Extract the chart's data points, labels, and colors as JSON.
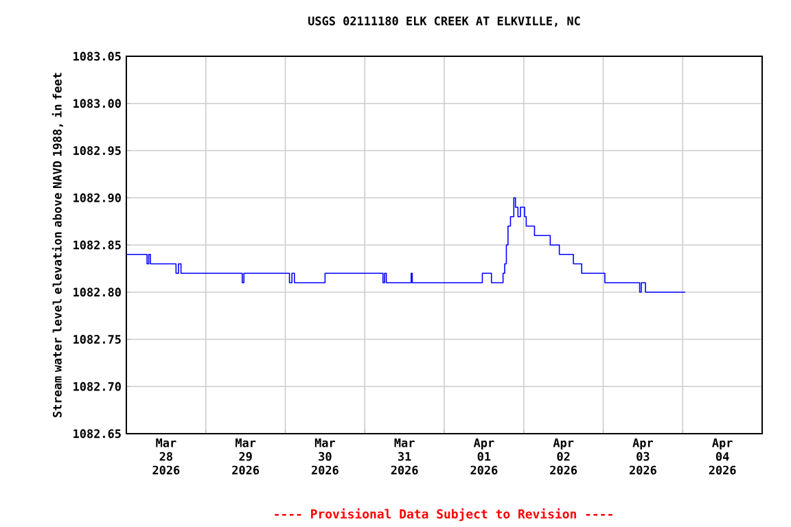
{
  "chart_data": {
    "type": "step",
    "title": "USGS 02111180 ELK CREEK AT ELKVILLE, NC",
    "ylabel": "Stream water level elevation above NAVD 1988, in feet",
    "annotations": [
      "---- Provisional Data Subject to Revision ----"
    ],
    "x": [
      "2026-03-28T00:00",
      "2026-03-28T06:15",
      "2026-03-28T06:45",
      "2026-03-28T07:15",
      "2026-03-28T15:00",
      "2026-03-28T15:45",
      "2026-03-28T16:30",
      "2026-03-29T11:00",
      "2026-03-29T11:30",
      "2026-03-30T01:15",
      "2026-03-30T02:00",
      "2026-03-30T02:45",
      "2026-03-30T12:00",
      "2026-03-31T05:30",
      "2026-03-31T06:00",
      "2026-03-31T06:30",
      "2026-03-31T14:00",
      "2026-03-31T14:20",
      "2026-04-01T11:30",
      "2026-04-01T14:15",
      "2026-04-01T17:45",
      "2026-04-01T18:15",
      "2026-04-01T18:45",
      "2026-04-01T19:15",
      "2026-04-01T20:00",
      "2026-04-01T21:00",
      "2026-04-01T21:30",
      "2026-04-01T22:15",
      "2026-04-01T23:00",
      "2026-04-02T00:15",
      "2026-04-02T00:45",
      "2026-04-02T03:15",
      "2026-04-02T08:00",
      "2026-04-02T10:45",
      "2026-04-02T15:00",
      "2026-04-02T17:30",
      "2026-04-03T00:30",
      "2026-04-03T11:00",
      "2026-04-03T11:30",
      "2026-04-03T12:45",
      "2026-04-04T00:45"
    ],
    "series": [
      {
        "color": "#0000ff",
        "values": [
          1082.84,
          1082.83,
          1082.84,
          1082.83,
          1082.82,
          1082.83,
          1082.82,
          1082.81,
          1082.82,
          1082.81,
          1082.82,
          1082.81,
          1082.82,
          1082.81,
          1082.82,
          1082.81,
          1082.82,
          1082.81,
          1082.82,
          1082.81,
          1082.82,
          1082.83,
          1082.85,
          1082.87,
          1082.88,
          1082.9,
          1082.89,
          1082.88,
          1082.89,
          1082.88,
          1082.87,
          1082.86,
          1082.85,
          1082.84,
          1082.83,
          1082.82,
          1082.81,
          1082.8,
          1082.81,
          1082.8,
          1082.8
        ]
      }
    ],
    "xlim": [
      "2026-03-28T00:00",
      "2026-04-05T00:00"
    ],
    "xticks": [
      {
        "value": "2026-03-29T00:00",
        "label": null
      },
      {
        "value": "2026-03-30T00:00",
        "label": null
      },
      {
        "value": "2026-03-31T00:00",
        "label": null
      },
      {
        "value": "2026-04-01T00:00",
        "label": null
      },
      {
        "value": "2026-04-02T00:00",
        "label": null
      },
      {
        "value": "2026-04-03T00:00",
        "label": null
      },
      {
        "value": "2026-04-04T00:00",
        "label": null
      },
      {
        "value": "2026-03-28T12:00",
        "label": "Mar 28 2026"
      },
      {
        "value": "2026-03-29T12:00",
        "label": "Mar 29 2026"
      },
      {
        "value": "2026-03-30T12:00",
        "label": "Mar 30 2026"
      },
      {
        "value": "2026-03-31T12:00",
        "label": "Mar 31 2026"
      },
      {
        "value": "2026-04-01T12:00",
        "label": "Apr 01 2026"
      },
      {
        "value": "2026-04-02T12:00",
        "label": "Apr 02 2026"
      },
      {
        "value": "2026-04-03T12:00",
        "label": "Apr 03 2026"
      },
      {
        "value": "2026-04-04T12:00",
        "label": "Apr 04 2026"
      }
    ],
    "ylim": [
      1082.65,
      1083.05
    ],
    "yticks": [
      {
        "value": 1082.65,
        "label": "1082.65"
      },
      {
        "value": 1082.7,
        "label": "1082.70"
      },
      {
        "value": 1082.75,
        "label": "1082.75"
      },
      {
        "value": 1082.8,
        "label": "1082.80"
      },
      {
        "value": 1082.85,
        "label": "1082.85"
      },
      {
        "value": 1082.9,
        "label": "1082.90"
      },
      {
        "value": 1082.95,
        "label": "1082.95"
      },
      {
        "value": 1083.0,
        "label": "1083.00"
      },
      {
        "value": 1083.05,
        "label": "1083.05"
      }
    ],
    "grid": true,
    "marker": "none",
    "line_style": "solid"
  }
}
